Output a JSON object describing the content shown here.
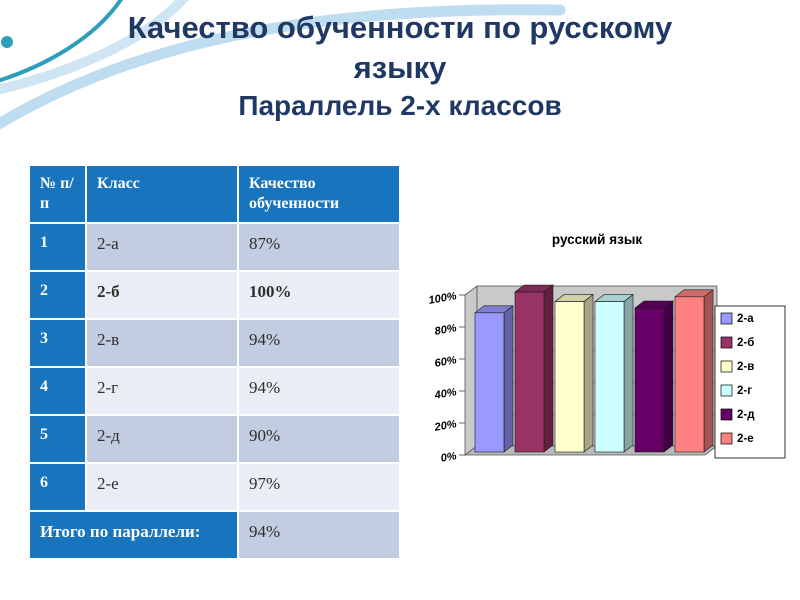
{
  "slide": {
    "title_line1": "Качество обученности по русскому языку",
    "title_line2": "Параллель 2-х классов"
  },
  "colors": {
    "title_text": "#1F3864",
    "table_header_bg": "#1874BC",
    "table_band_dark": "#C3CDE1",
    "table_band_light": "#E9EDF6",
    "accent_teal": "#2E9FBA",
    "swoosh_blue": "#BFDDF0"
  },
  "table": {
    "headers": [
      "№ п/п",
      "Класс",
      "Качество обученности"
    ],
    "rows": [
      {
        "num": "1",
        "klass": "2-а",
        "value": "87%",
        "emphasis": false
      },
      {
        "num": "2",
        "klass": "2-б",
        "value": "100%",
        "emphasis": true
      },
      {
        "num": "3",
        "klass": "2-в",
        "value": "94%",
        "emphasis": false
      },
      {
        "num": "4",
        "klass": "2-г",
        "value": "94%",
        "emphasis": false
      },
      {
        "num": "5",
        "klass": "2-д",
        "value": "90%",
        "emphasis": false
      },
      {
        "num": "6",
        "klass": "2-е",
        "value": "97%",
        "emphasis": false
      }
    ],
    "footer": {
      "label": "Итого по параллели:",
      "value": "94%"
    }
  },
  "chart_data": {
    "type": "bar",
    "three_d": true,
    "title": "русский язык",
    "categories": [
      "2-а",
      "2-б",
      "2-в",
      "2-г",
      "2-д",
      "2-е"
    ],
    "values": [
      87,
      100,
      94,
      94,
      90,
      97
    ],
    "colors": [
      "#9999FF",
      "#993366",
      "#FFFFCC",
      "#CCFFFF",
      "#660066",
      "#FF8080"
    ],
    "yticks": [
      "0%",
      "20%",
      "40%",
      "60%",
      "80%",
      "100%"
    ],
    "ylim": [
      0,
      100
    ],
    "legend_position": "right",
    "grid": true
  }
}
